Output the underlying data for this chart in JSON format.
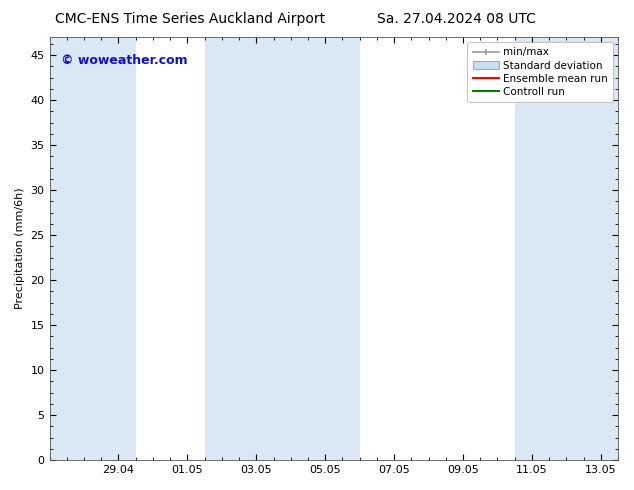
{
  "title_left": "CMC-ENS Time Series Auckland Airport",
  "title_right": "Sa. 27.04.2024 08 UTC",
  "ylabel": "Precipitation (mm/6h)",
  "watermark": "© woweather.com",
  "xlim_start": 0.0,
  "xlim_end": 16.5,
  "ylim": [
    0,
    47
  ],
  "yticks": [
    0,
    5,
    10,
    15,
    20,
    25,
    30,
    35,
    40,
    45
  ],
  "xtick_labels": [
    "29.04",
    "01.05",
    "03.05",
    "05.05",
    "07.05",
    "09.05",
    "11.05",
    "13.05"
  ],
  "xtick_positions": [
    2.0,
    4.0,
    6.0,
    8.0,
    10.0,
    12.0,
    14.0,
    16.0
  ],
  "shaded_bands": [
    {
      "x_start": 0.0,
      "x_end": 2.5,
      "color": "#dae8f5",
      "alpha": 1.0
    },
    {
      "x_start": 7.5,
      "x_end": 9.0,
      "color": "#dae8f5",
      "alpha": 1.0
    },
    {
      "x_start": 13.5,
      "x_end": 16.5,
      "color": "#dae8f5",
      "alpha": 1.0
    },
    {
      "x_start": 4.5,
      "x_end": 7.5,
      "color": "#dae8f5",
      "alpha": 1.0
    }
  ],
  "legend_items": [
    {
      "label": "min/max",
      "color": "#999999",
      "type": "hline"
    },
    {
      "label": "Standard deviation",
      "color": "#c8dded",
      "type": "fill"
    },
    {
      "label": "Ensemble mean run",
      "color": "#ff0000",
      "type": "line"
    },
    {
      "label": "Controll run",
      "color": "#008000",
      "type": "line"
    }
  ],
  "background_color": "#ffffff",
  "plot_bg_color": "#ffffff",
  "title_fontsize": 10,
  "watermark_color": "#1111cc",
  "watermark_fontsize": 9,
  "axis_label_fontsize": 8,
  "tick_fontsize": 8,
  "legend_fontsize": 7.5
}
